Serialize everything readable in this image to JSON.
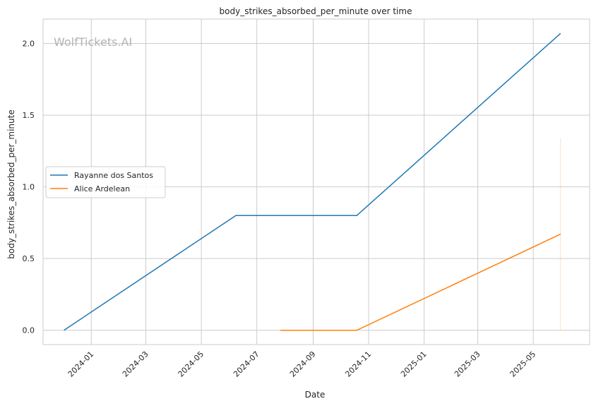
{
  "chart_data": {
    "type": "line",
    "title": "body_strikes_absorbed_per_minute over time",
    "xlabel": "Date",
    "ylabel": "body_strikes_absorbed_per_minute",
    "xlim": [
      "2023-11-09",
      "2025-07-02"
    ],
    "ylim": [
      -0.1,
      2.17
    ],
    "x_ticks": [
      "2024-01",
      "2024-03",
      "2024-05",
      "2024-07",
      "2024-09",
      "2024-11",
      "2025-01",
      "2025-03",
      "2025-05"
    ],
    "y_ticks": [
      "0.0",
      "0.5",
      "1.0",
      "1.5",
      "2.0"
    ],
    "grid": true,
    "legend_position": "center-left",
    "watermark": "WolfTickets.AI",
    "series": [
      {
        "name": "Rayanne dos Santos",
        "color": "#1f77b4",
        "points": [
          {
            "x": "2023-12-02",
            "y": 0.0
          },
          {
            "x": "2024-06-08",
            "y": 0.8
          },
          {
            "x": "2024-10-19",
            "y": 0.8
          },
          {
            "x": "2025-05-31",
            "y": 2.07
          }
        ]
      },
      {
        "name": "Alice Ardelean",
        "color": "#ff7f0e",
        "points": [
          {
            "x": "2024-07-27",
            "y": 0.0
          },
          {
            "x": "2024-10-19",
            "y": 0.0
          },
          {
            "x": "2025-05-31",
            "y": 0.67
          }
        ]
      }
    ],
    "error_bar": {
      "x": "2025-05-31",
      "y_low": 0.0,
      "y_high": 1.34,
      "color": "#ff7f0e"
    }
  }
}
